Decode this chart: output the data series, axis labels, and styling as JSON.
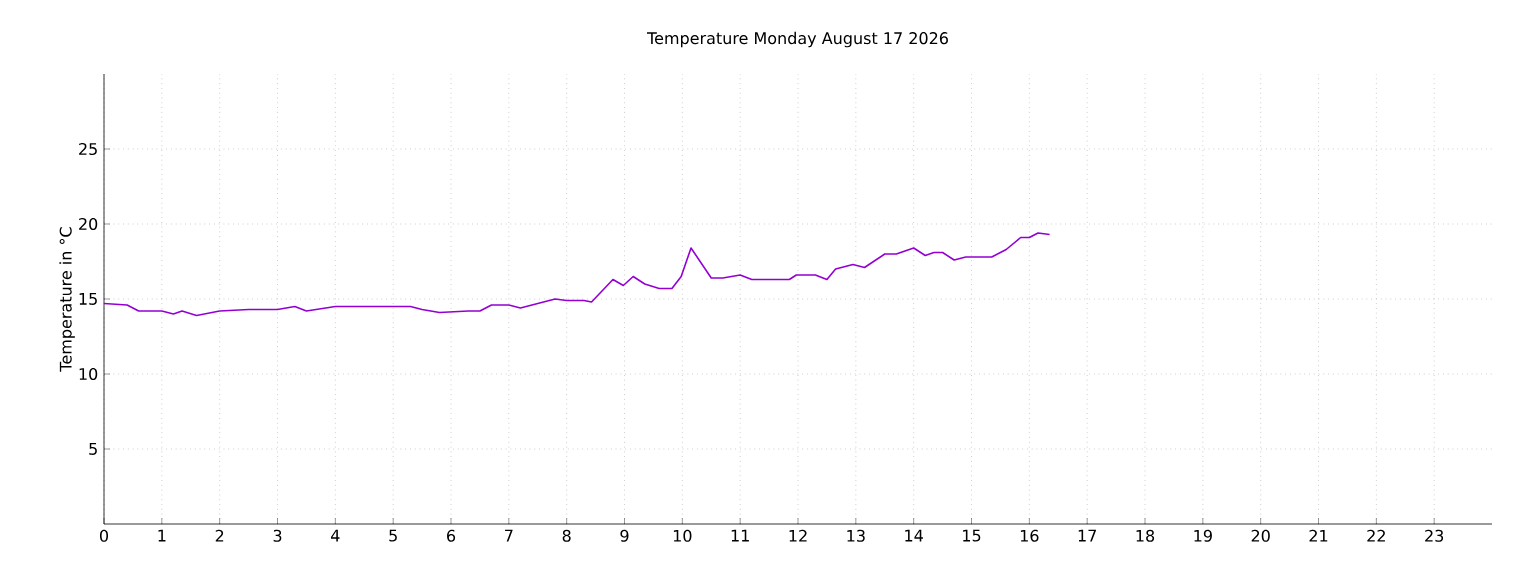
{
  "chart_data": {
    "type": "line",
    "title": "Temperature Monday August 17 2026",
    "ylabel": "Temperature in °C",
    "x": [
      0,
      0.4,
      0.6,
      1.0,
      1.2,
      1.35,
      1.6,
      2.0,
      2.5,
      3.0,
      3.3,
      3.5,
      4.0,
      5.0,
      5.3,
      5.5,
      5.8,
      6.3,
      6.5,
      6.7,
      7.0,
      7.2,
      7.5,
      7.8,
      8.0,
      8.3,
      8.43,
      8.8,
      8.98,
      9.15,
      9.35,
      9.6,
      9.82,
      9.98,
      10.15,
      10.5,
      10.7,
      11.0,
      11.2,
      11.85,
      11.97,
      12.3,
      12.5,
      12.65,
      12.95,
      13.15,
      13.5,
      13.7,
      14.0,
      14.2,
      14.35,
      14.5,
      14.7,
      14.9,
      15.35,
      15.6,
      15.85,
      16.0,
      16.15,
      16.35
    ],
    "series": [
      {
        "color": "#9400d3",
        "values": [
          14.7,
          14.6,
          14.2,
          14.2,
          14.0,
          14.2,
          13.9,
          14.2,
          14.3,
          14.3,
          14.5,
          14.2,
          14.5,
          14.5,
          14.5,
          14.3,
          14.1,
          14.2,
          14.2,
          14.6,
          14.6,
          14.4,
          14.7,
          15.0,
          14.9,
          14.9,
          14.8,
          16.3,
          15.9,
          16.5,
          16.0,
          15.7,
          15.7,
          16.5,
          18.4,
          16.4,
          16.4,
          16.6,
          16.3,
          16.3,
          16.6,
          16.6,
          16.3,
          17.0,
          17.3,
          17.1,
          18.0,
          18.0,
          18.4,
          17.9,
          18.1,
          18.1,
          17.6,
          17.8,
          17.8,
          18.3,
          19.1,
          19.1,
          19.4,
          19.3
        ]
      }
    ],
    "xlim": [
      0,
      24
    ],
    "xticks": [
      0,
      1,
      2,
      3,
      4,
      5,
      6,
      7,
      8,
      9,
      10,
      11,
      12,
      13,
      14,
      15,
      16,
      17,
      18,
      19,
      20,
      21,
      22,
      23
    ],
    "ylim": [
      0,
      30
    ],
    "yticks": [
      5,
      10,
      15,
      20,
      25
    ],
    "grid": true
  }
}
